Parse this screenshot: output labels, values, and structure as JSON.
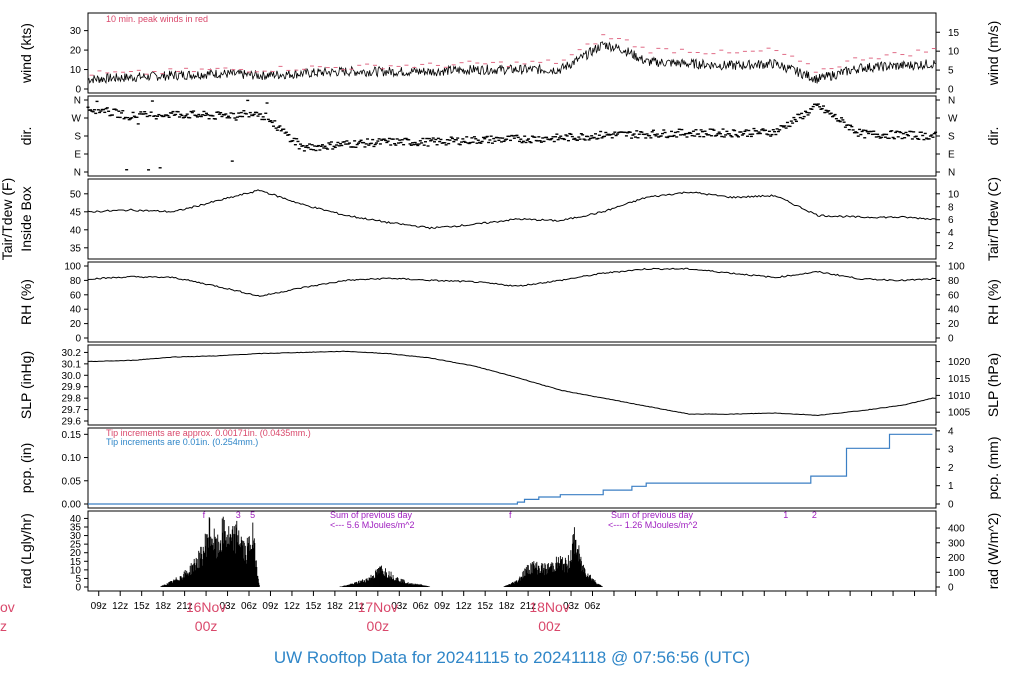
{
  "footer": {
    "title": "UW Rooftop Data for 20241115  to  20241118 @ 07:56:56  (UTC)"
  },
  "date_labels": [
    {
      "text": "16Nov",
      "sub": "00z"
    },
    {
      "text": "17Nov",
      "sub": "00z"
    },
    {
      "text": "18Nov",
      "sub": "00z"
    }
  ],
  "left_date_fragment": {
    "text": "ov",
    "sub": "z"
  },
  "x_ticks": [
    "09z",
    "12z",
    "15z",
    "18z",
    "21z",
    "03z",
    "06z",
    "09z",
    "12z",
    "15z",
    "18z",
    "21z",
    "03z",
    "06z",
    "09z",
    "12z",
    "15z",
    "18z",
    "21z",
    "03z",
    "06z"
  ],
  "colors": {
    "peak": "#e06a85",
    "trace": "#000000",
    "pcp": "#3b7fc4",
    "red": "#d9486b",
    "blue": "#2f86c8",
    "purple": "#a020c0"
  },
  "panels": {
    "wind": {
      "ylabel": "wind (kts)",
      "ylabel_right": "wind (m/s)",
      "note": "10 min. peak winds in red",
      "ticks": [
        "0",
        "10",
        "20",
        "30"
      ],
      "ticks_right": [
        "0",
        "5",
        "10",
        "15"
      ]
    },
    "dir": {
      "ylabel": "dir.",
      "ylabel_right": "dir.",
      "ticks": [
        "N",
        "E",
        "S",
        "W",
        "N"
      ]
    },
    "temp": {
      "ylabel_a": "Tair/Tdew (F)",
      "ylabel_b": "Inside Box",
      "ylabel_right": "Tair/Tdew (C)",
      "ticks": [
        "35",
        "40",
        "45",
        "50"
      ],
      "ticks_right": [
        "2",
        "4",
        "6",
        "8",
        "10"
      ]
    },
    "rh": {
      "ylabel": "RH (%)",
      "ylabel_right": "RH (%)",
      "ticks": [
        "0",
        "20",
        "40",
        "60",
        "80",
        "100"
      ]
    },
    "slp": {
      "ylabel": "SLP (inHg)",
      "ylabel_right": "SLP (hPa)",
      "ticks": [
        "29.6",
        "29.7",
        "29.8",
        "29.9",
        "30.0",
        "30.1",
        "30.2"
      ],
      "ticks_right": [
        "1005",
        "1010",
        "1015",
        "1020"
      ]
    },
    "pcp": {
      "ylabel": "pcp. (in)",
      "ylabel_right": "pcp. (mm)",
      "note1": "Tip increments are approx. 0.00171in. (0.0435mm.)",
      "note2": "Tip increments are 0.01in. (0.254mm.)",
      "ticks": [
        "0.00",
        "0.05",
        "0.10",
        "0.15"
      ],
      "ticks_right": [
        "0",
        "1",
        "2",
        "3",
        "4"
      ]
    },
    "rad": {
      "ylabel": "rad (Lgly/hr)",
      "ylabel_right": "rad (W/m^2)",
      "ticks": [
        "0",
        "5",
        "10",
        "15",
        "20",
        "25",
        "30",
        "35",
        "40"
      ],
      "ticks_right": [
        "0",
        "100",
        "200",
        "300",
        "400"
      ],
      "sum1_a": "Sum of previous day",
      "sum1_b": "<--- 5.6 MJoules/m^2",
      "sum2_a": "Sum of previous day",
      "sum2_b": "<--- 1.26 MJoules/m^2",
      "markers": [
        "f",
        "3",
        "5",
        "f",
        "1",
        "2"
      ]
    }
  },
  "chart_data": [
    {
      "type": "line",
      "title": "",
      "xlabel": "",
      "ylabel": "wind (kts)",
      "ylim": [
        0,
        37
      ],
      "series": [
        {
          "name": "10 min. peak winds in red",
          "x_hours": [
            0,
            6,
            12,
            18,
            24,
            30,
            36,
            42,
            48,
            54,
            60,
            66,
            69,
            72,
            75,
            78,
            84,
            90,
            96,
            102,
            108,
            114,
            118
          ],
          "values": [
            8,
            8,
            9,
            10,
            10,
            11,
            11,
            12,
            12,
            13,
            13,
            14,
            20,
            27,
            25,
            20,
            20,
            18,
            20,
            9,
            16,
            18,
            20
          ]
        },
        {
          "name": "",
          "x_hours": [
            0,
            6,
            12,
            18,
            24,
            30,
            36,
            42,
            48,
            54,
            60,
            66,
            69,
            72,
            75,
            78,
            84,
            90,
            96,
            102,
            108,
            114,
            118
          ],
          "values": [
            5,
            6,
            7,
            8,
            7,
            8,
            9,
            9,
            9,
            10,
            10,
            10,
            16,
            23,
            20,
            14,
            13,
            12,
            13,
            5,
            11,
            12,
            13
          ]
        }
      ]
    },
    {
      "type": "scatter",
      "ylabel": "dir.",
      "y_axis": [
        "N",
        "E",
        "S",
        "W",
        "N"
      ],
      "x_hours": [
        0,
        6,
        12,
        18,
        24,
        30,
        36,
        42,
        48,
        54,
        60,
        66,
        72,
        78,
        84,
        90,
        96,
        102,
        108,
        114,
        118
      ],
      "values_deg": [
        320,
        280,
        290,
        280,
        300,
        120,
        140,
        150,
        150,
        160,
        165,
        170,
        185,
        190,
        195,
        195,
        200,
        330,
        190,
        185,
        180
      ]
    },
    {
      "type": "line",
      "ylabel": "Tair/Tdew (F)",
      "ylim": [
        33,
        53
      ],
      "x_hours": [
        0,
        6,
        12,
        18,
        24,
        30,
        36,
        42,
        48,
        54,
        60,
        66,
        72,
        78,
        84,
        90,
        96,
        102,
        108,
        114,
        118
      ],
      "values": [
        45,
        45.5,
        45,
        48,
        51,
        47,
        44,
        42,
        40.5,
        41.5,
        43,
        42.5,
        45,
        49,
        50.5,
        49,
        49.5,
        44,
        43.5,
        43.5,
        43
      ]
    },
    {
      "type": "line",
      "ylabel": "RH (%)",
      "ylim": [
        0,
        100
      ],
      "x_hours": [
        0,
        6,
        12,
        18,
        24,
        30,
        36,
        42,
        48,
        54,
        60,
        66,
        72,
        78,
        84,
        90,
        96,
        102,
        108,
        114,
        118
      ],
      "values": [
        82,
        85,
        84,
        72,
        58,
        70,
        80,
        83,
        80,
        78,
        72,
        80,
        90,
        96,
        96,
        90,
        84,
        92,
        82,
        80,
        82
      ]
    },
    {
      "type": "line",
      "ylabel": "SLP (inHg)",
      "ylim": [
        29.6,
        30.23
      ],
      "x_hours": [
        0,
        6,
        12,
        18,
        24,
        30,
        36,
        42,
        48,
        54,
        60,
        66,
        72,
        78,
        84,
        90,
        96,
        102,
        108,
        114,
        118
      ],
      "values": [
        30.12,
        30.13,
        30.16,
        30.17,
        30.19,
        30.2,
        30.21,
        30.19,
        30.15,
        30.08,
        29.98,
        29.87,
        29.8,
        29.73,
        29.66,
        29.66,
        29.67,
        29.65,
        29.69,
        29.74,
        29.8
      ]
    },
    {
      "type": "line",
      "ylabel": "pcp. (in)",
      "ylim": [
        0,
        0.155
      ],
      "x_hours": [
        0,
        59,
        60,
        61,
        63,
        66,
        72,
        76,
        78,
        96,
        101,
        106,
        112,
        118
      ],
      "values": [
        0,
        0,
        0.004,
        0.01,
        0.015,
        0.02,
        0.03,
        0.038,
        0.045,
        0.045,
        0.06,
        0.12,
        0.15,
        0.15
      ]
    },
    {
      "type": "area",
      "ylabel": "rad (Lgly/hr)",
      "ylim": [
        0,
        42
      ],
      "x_hours": [
        0,
        10,
        12,
        14,
        16,
        17,
        18,
        19,
        20,
        21,
        22,
        23,
        24,
        35,
        37,
        39,
        40,
        41,
        43,
        44,
        45,
        46,
        47,
        48,
        58,
        60,
        61,
        62,
        64,
        66,
        67,
        68,
        69,
        70,
        71,
        72
      ],
      "values": [
        0,
        0,
        4,
        10,
        22,
        38,
        25,
        38,
        30,
        36,
        22,
        34,
        0,
        0,
        2,
        5,
        8,
        12,
        6,
        4,
        2,
        2,
        1,
        0,
        0,
        4,
        10,
        14,
        12,
        17,
        14,
        32,
        14,
        8,
        3,
        0
      ]
    }
  ]
}
